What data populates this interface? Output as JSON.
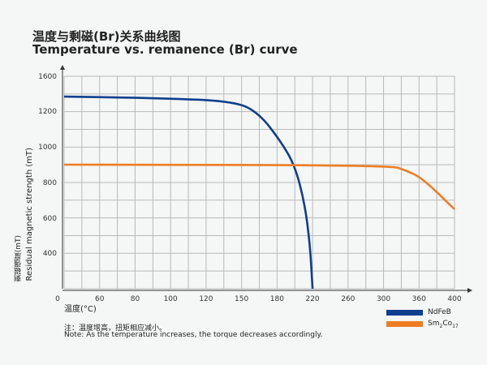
{
  "title_cn": "温度与剩磁(Br)关系曲线图",
  "title_en": "Temperature vs. remanence (Br) curve",
  "chart_data": {
    "type": "line",
    "xlabel": "温度(°C)",
    "ylabel_cn": "剩磁强度(mT)",
    "ylabel_en": "Residual magnetic strength (mT)",
    "x_ticks": [
      0,
      60,
      80,
      100,
      120,
      150,
      180,
      220,
      260,
      300,
      360,
      400
    ],
    "y_ticks": [
      400,
      600,
      800,
      1000,
      1200,
      1600
    ],
    "xlim": [
      0,
      400
    ],
    "ylim": [
      0,
      1600
    ],
    "grid": true,
    "legend": "bottom-right",
    "series": [
      {
        "name": "NdFeB",
        "color": "#0d3f8f",
        "points": [
          [
            0,
            1367
          ],
          [
            95,
            1349
          ],
          [
            145,
            1312
          ],
          [
            165,
            1186
          ],
          [
            184,
            1032
          ],
          [
            200,
            895
          ],
          [
            211,
            686
          ],
          [
            217,
            455
          ],
          [
            220,
            0
          ]
        ]
      },
      {
        "name": "Sm2Co17",
        "name_main": "Sm",
        "sub1": "2",
        "mid": "Co",
        "sub2": "17",
        "color": "#ee7d22",
        "points": [
          [
            0,
            900
          ],
          [
            311,
            897
          ],
          [
            338,
            868
          ],
          [
            364,
            823
          ],
          [
            400,
            650
          ]
        ]
      }
    ]
  },
  "note_cn": "注：温度增高，扭矩相应减小。",
  "note_en": "Note: As the temperature increases, the torque decreases accordingly."
}
